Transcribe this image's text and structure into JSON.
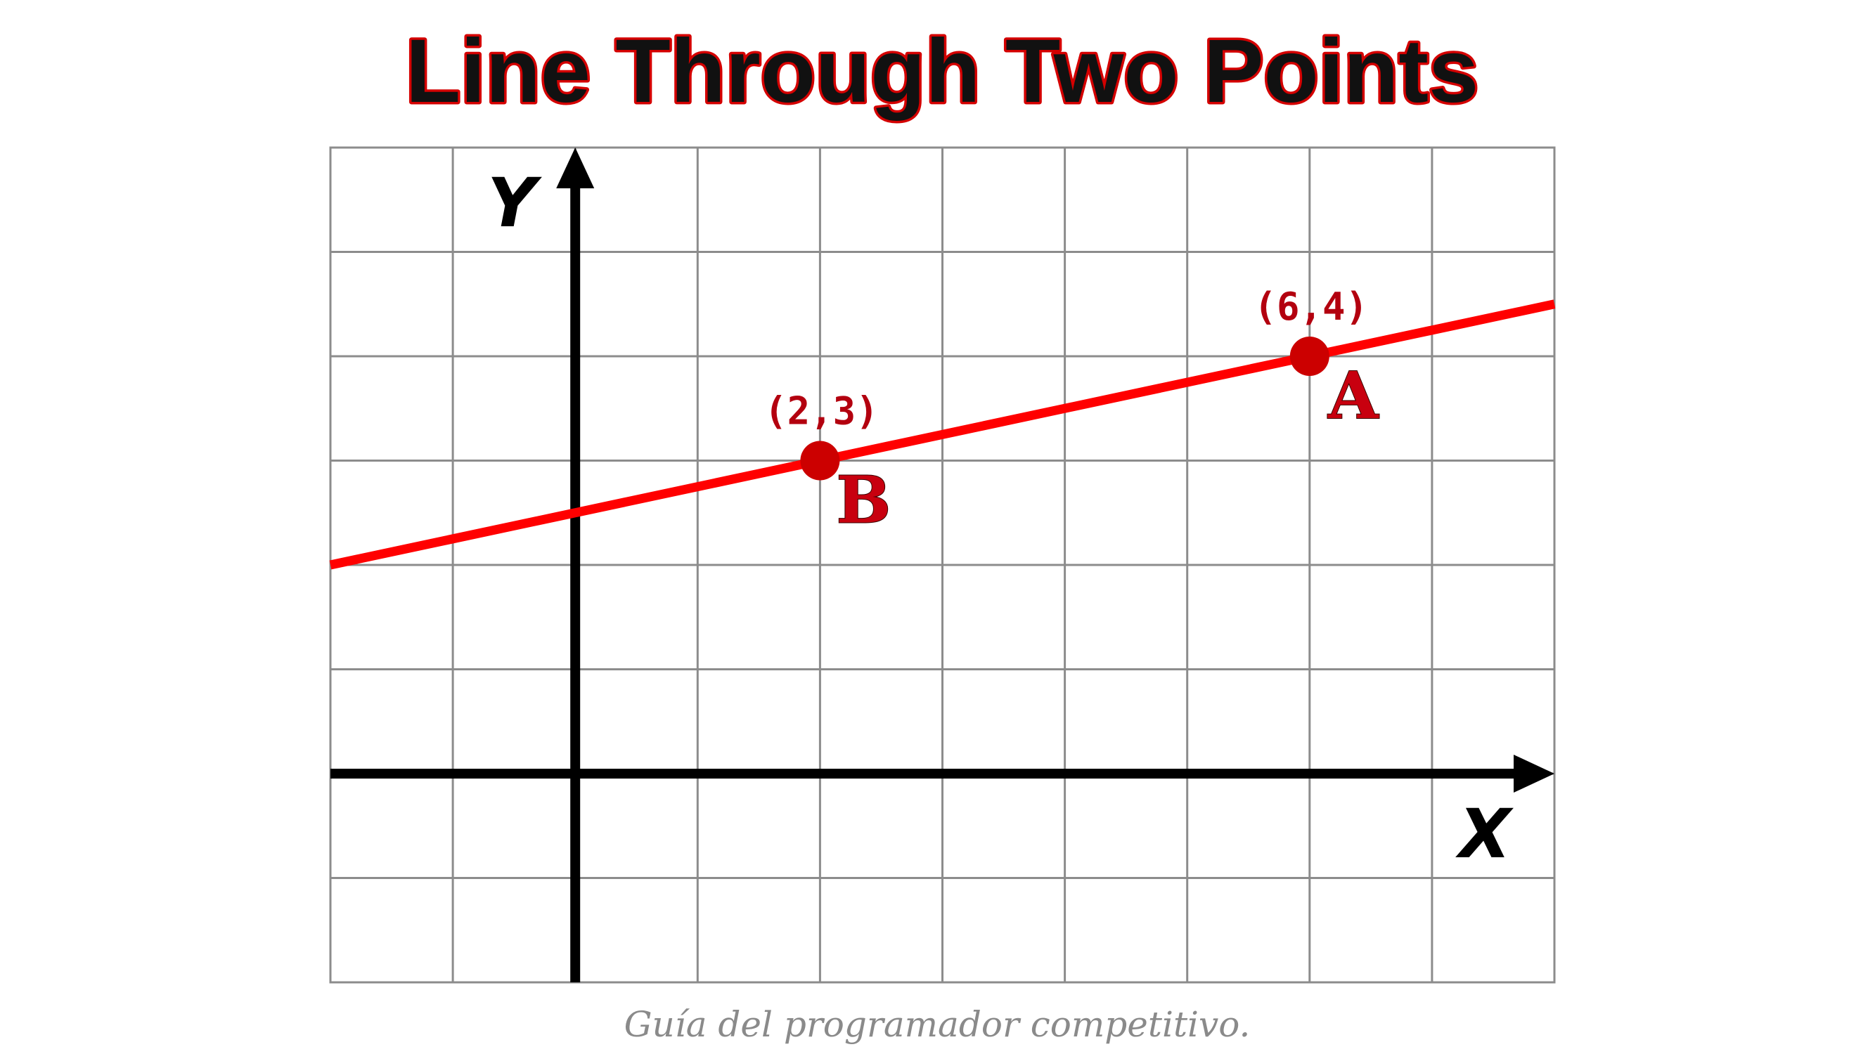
{
  "title": "Line Through Two Points",
  "footer": "Guía del programador competitivo.",
  "colors": {
    "line": "#ff0000",
    "point": "#cc0000",
    "axis": "#000000",
    "grid": "#8c8c8c",
    "title_outline": "#d40000"
  },
  "graph": {
    "x_axis_label": "X",
    "y_axis_label": "Y",
    "x_range": [
      -2,
      8
    ],
    "y_range": [
      -2,
      6
    ],
    "grid_step": 1,
    "line": {
      "slope": 0.25,
      "intercept": 2.5
    },
    "points": [
      {
        "name": "B",
        "x": 2,
        "y": 3,
        "coord_label": "(2,3)"
      },
      {
        "name": "A",
        "x": 6,
        "y": 4,
        "coord_label": "(6,4)"
      }
    ]
  }
}
